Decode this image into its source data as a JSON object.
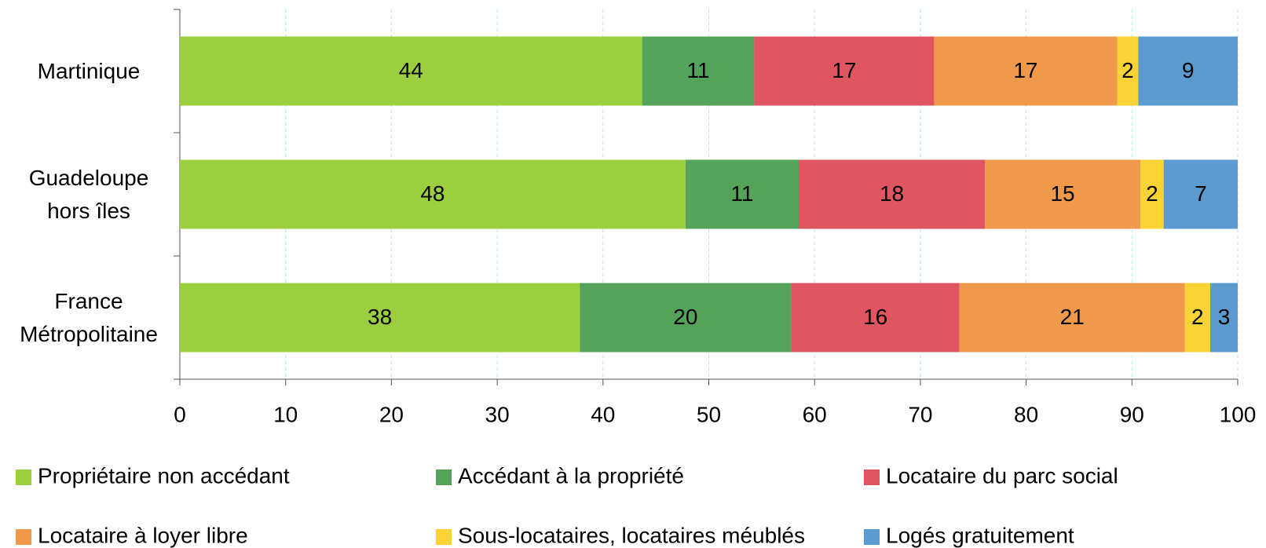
{
  "chart_data": {
    "type": "stacked-barh",
    "categories": [
      "Martinique",
      "Guadeloupe hors îles",
      "France Métropolitaine"
    ],
    "series": [
      {
        "name": "Propriétaire non accédant",
        "color": "#9ccf40",
        "values": [
          43.7,
          47.8,
          37.8
        ],
        "value_labels": [
          "44",
          "48",
          "38"
        ]
      },
      {
        "name": "Accédant à la propriété",
        "color": "#55a35a",
        "values": [
          10.6,
          10.7,
          20.0
        ],
        "value_labels": [
          "11",
          "11",
          "20"
        ]
      },
      {
        "name": "Locataire du parc social",
        "color": "#e05660",
        "values": [
          17.0,
          17.6,
          15.9
        ],
        "value_labels": [
          "17",
          "18",
          "16"
        ]
      },
      {
        "name": "Locataire à loyer libre",
        "color": "#f0994a",
        "values": [
          17.3,
          14.7,
          21.3
        ],
        "value_labels": [
          "17",
          "15",
          "21"
        ]
      },
      {
        "name": "Sous-locataires, locataires méublés",
        "color": "#f9d236",
        "values": [
          2.0,
          2.2,
          2.4
        ],
        "value_labels": [
          "2",
          "2",
          "2"
        ]
      },
      {
        "name": "Logés gratuitement",
        "color": "#5b9bd0",
        "values": [
          9.4,
          7.0,
          2.6
        ],
        "value_labels": [
          "9",
          "7",
          "3"
        ]
      }
    ],
    "xlim": [
      0,
      100
    ],
    "xticks": [
      0,
      10,
      20,
      30,
      40,
      50,
      60,
      70,
      80,
      90,
      100
    ],
    "grid": true,
    "legend": "bottom"
  }
}
